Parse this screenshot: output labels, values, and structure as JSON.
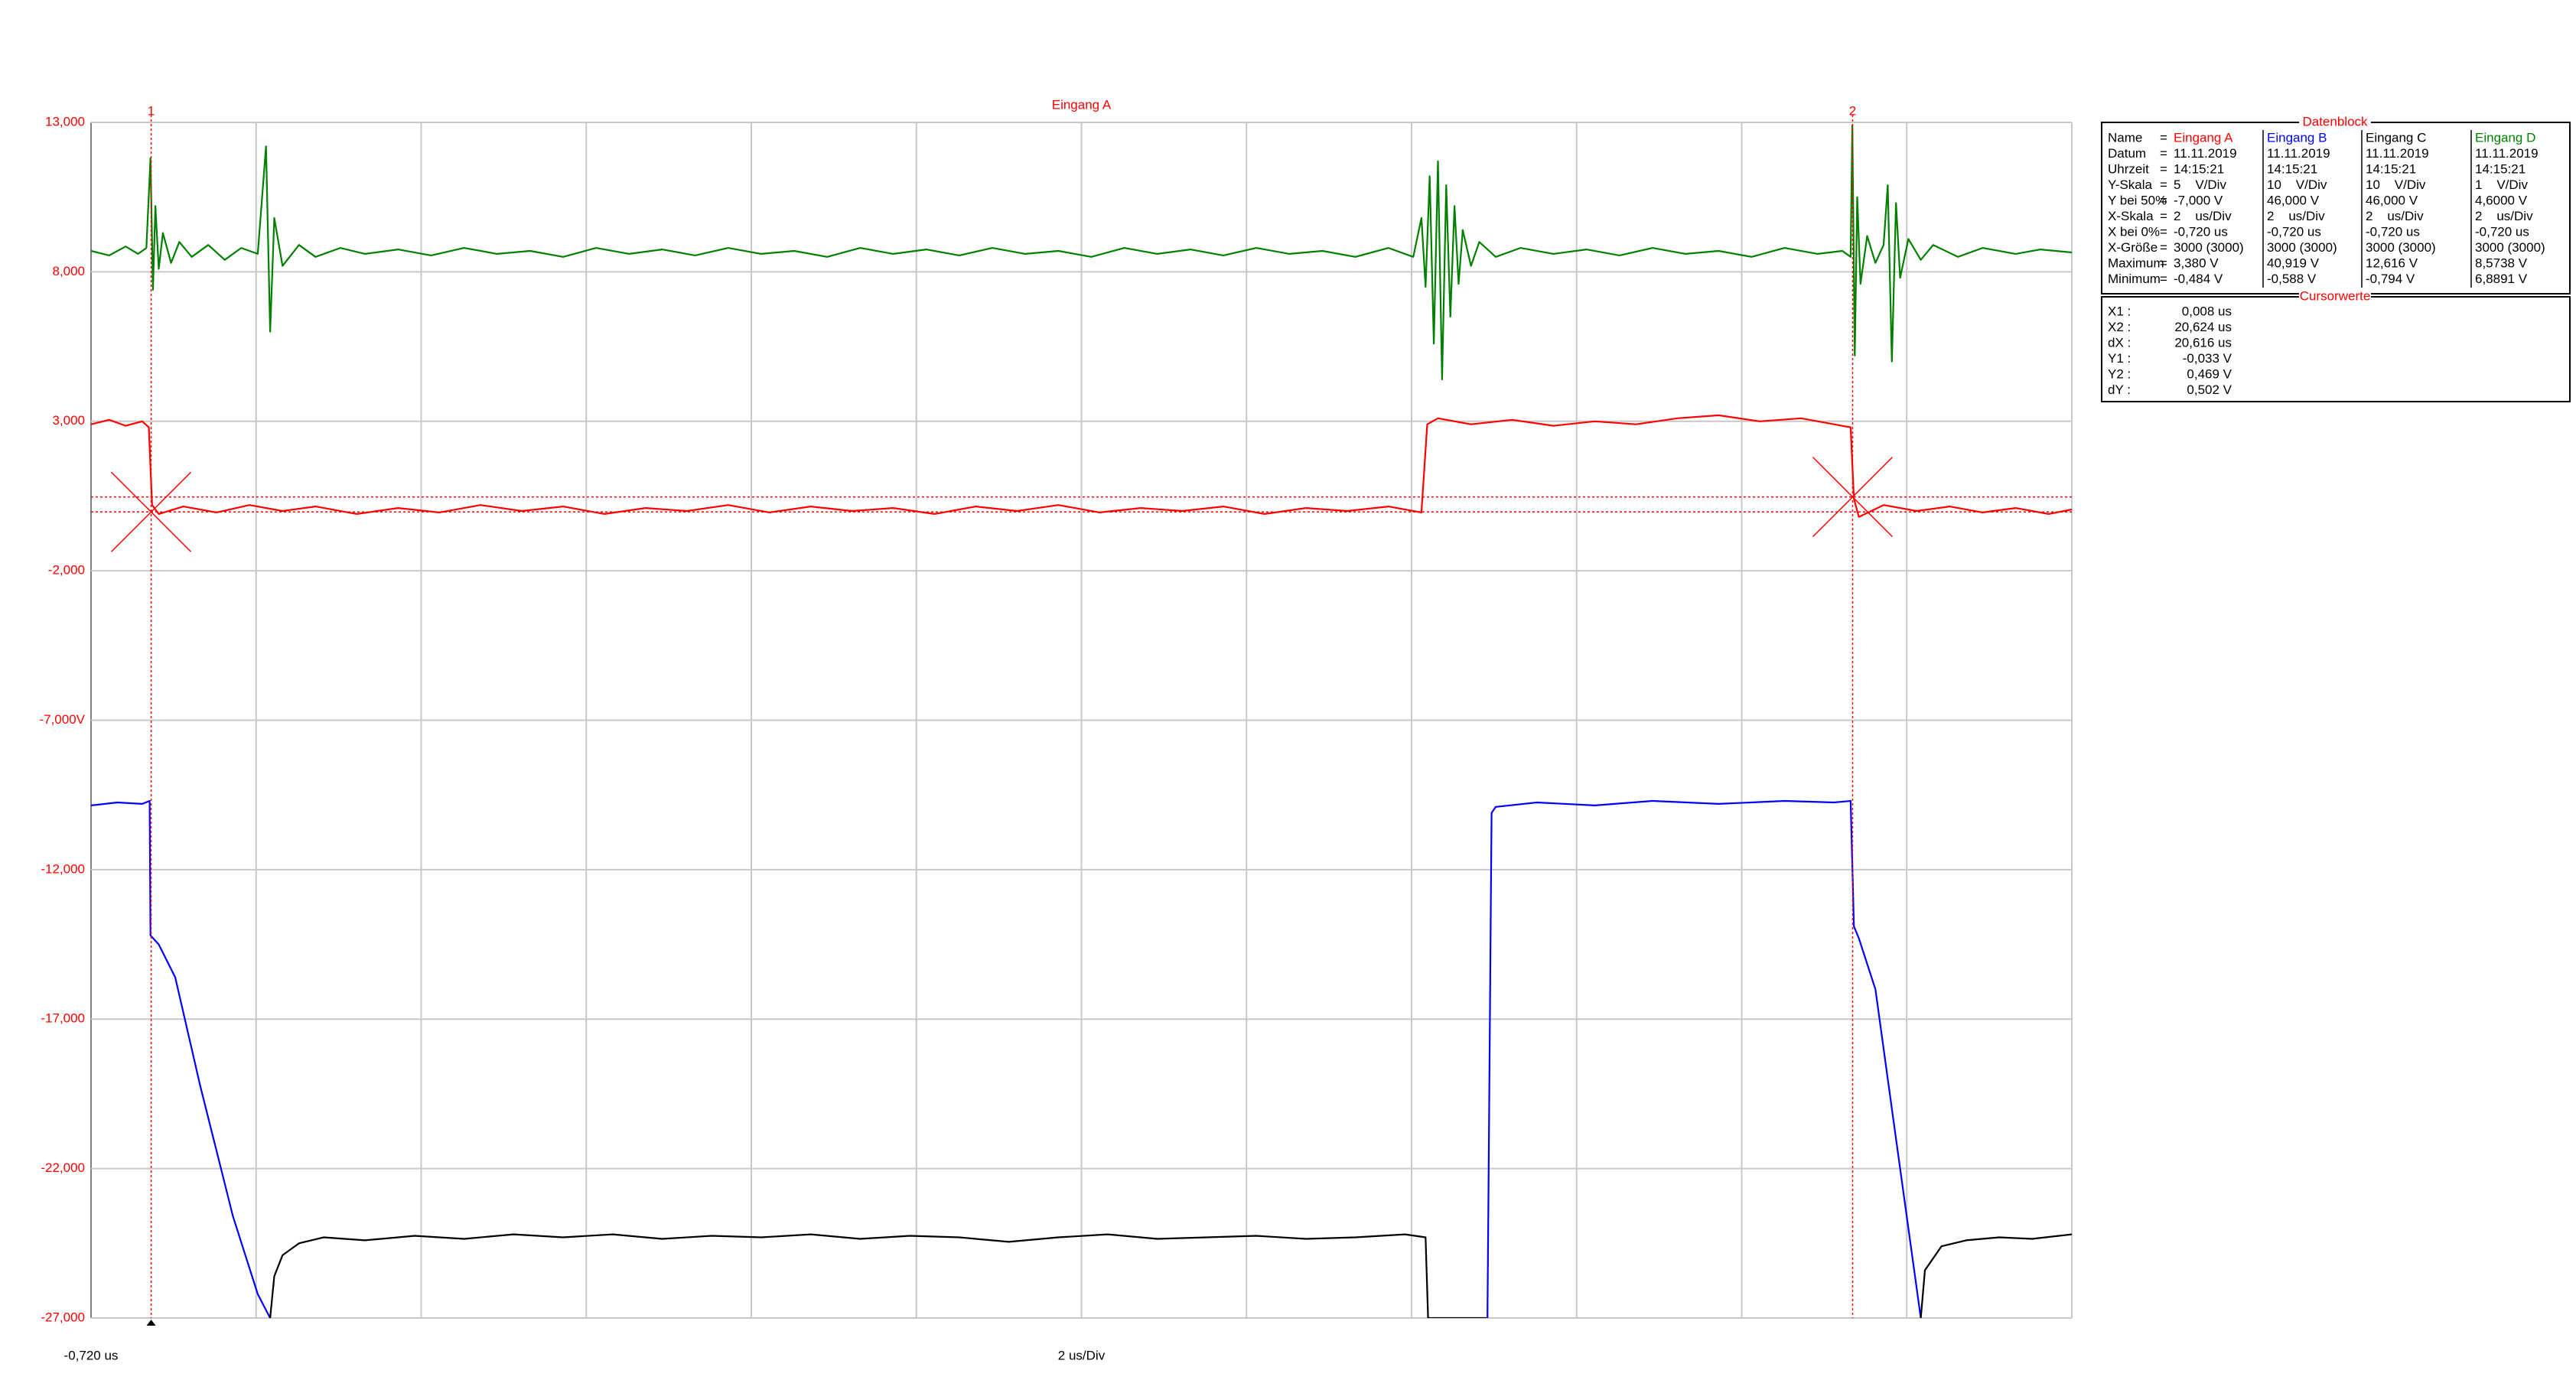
{
  "chart_data": {
    "type": "line",
    "title": "Eingang A",
    "xlim": [
      -0.72,
      23.28
    ],
    "xticks": [
      -0.72,
      1.28,
      3.28,
      5.28,
      7.28,
      9.28,
      11.28,
      13.28,
      15.28,
      17.28,
      19.28,
      21.28,
      23.28
    ],
    "x_origin_label": "-0,720 us",
    "x_scale_label": "2 us/Div",
    "ylim": [
      -27,
      13
    ],
    "yticks": [
      {
        "value": 13,
        "label": "13,000"
      },
      {
        "value": 8,
        "label": "8,000"
      },
      {
        "value": 3,
        "label": "3,000"
      },
      {
        "value": -2,
        "label": "-2,000"
      },
      {
        "value": -7,
        "label": "-7,000V"
      },
      {
        "value": -12,
        "label": "-12,000"
      },
      {
        "value": -17,
        "label": "-17,000"
      },
      {
        "value": -22,
        "label": "-22,000"
      },
      {
        "value": -27,
        "label": "-27,000"
      }
    ],
    "grid": true,
    "cursors": {
      "labels": [
        "1",
        "2"
      ],
      "x": [
        0.008,
        20.624
      ],
      "y": [
        -0.033,
        0.469
      ],
      "color": "#ff0000"
    },
    "series": [
      {
        "name": "Eingang A",
        "color": "#ff0000",
        "x": [
          -0.72,
          -0.5,
          -0.3,
          -0.1,
          -0.02,
          0.02,
          0.1,
          0.4,
          0.8,
          1.2,
          1.6,
          2.0,
          2.5,
          3.0,
          3.5,
          4.0,
          4.5,
          5.0,
          5.5,
          6.0,
          6.5,
          7.0,
          7.5,
          8.0,
          8.5,
          9.0,
          9.5,
          10.0,
          10.5,
          11.0,
          11.5,
          12.0,
          12.5,
          13.0,
          13.5,
          14.0,
          14.5,
          15.0,
          15.4,
          15.47,
          15.6,
          16.0,
          16.5,
          17.0,
          17.5,
          18.0,
          18.5,
          19.0,
          19.5,
          20.0,
          20.4,
          20.6,
          20.64,
          20.7,
          21.0,
          21.4,
          21.8,
          22.2,
          22.6,
          23.0,
          23.28
        ],
        "values": [
          2.9,
          3.05,
          2.85,
          3.0,
          2.8,
          0.2,
          -0.1,
          0.15,
          -0.05,
          0.2,
          0.0,
          0.15,
          -0.1,
          0.1,
          -0.05,
          0.2,
          0.0,
          0.15,
          -0.1,
          0.1,
          0.0,
          0.2,
          -0.05,
          0.15,
          0.0,
          0.1,
          -0.1,
          0.15,
          0.0,
          0.2,
          -0.05,
          0.1,
          0.0,
          0.15,
          -0.1,
          0.1,
          0.0,
          0.15,
          -0.05,
          2.9,
          3.1,
          2.9,
          3.05,
          2.85,
          3.0,
          2.9,
          3.1,
          3.2,
          3.0,
          3.1,
          2.9,
          2.8,
          0.4,
          -0.2,
          0.2,
          0.0,
          0.15,
          -0.05,
          0.1,
          -0.1,
          0.05
        ]
      },
      {
        "name": "Eingang B",
        "color": "#0000ff",
        "x": [
          -0.72,
          -0.4,
          -0.1,
          -0.01,
          0.0,
          0.1,
          0.3,
          0.6,
          1.0,
          1.3,
          1.45,
          8.0,
          16.2,
          16.25,
          16.3,
          16.8,
          17.5,
          18.2,
          19.0,
          19.8,
          20.4,
          20.6,
          20.64,
          20.7,
          20.9,
          21.1,
          21.3,
          21.45
        ],
        "values": [
          -9.85,
          -9.75,
          -9.8,
          -9.7,
          -14.2,
          -14.5,
          -15.6,
          -19.2,
          -23.6,
          -26.2,
          -27,
          null,
          -27,
          -10.1,
          -9.9,
          -9.75,
          -9.85,
          -9.7,
          -9.8,
          -9.7,
          -9.75,
          -9.7,
          -13.9,
          -14.3,
          -16.0,
          -20.0,
          -24.0,
          -27
        ]
      },
      {
        "name": "Eingang C",
        "color": "#000000",
        "x": [
          1.45,
          1.5,
          1.6,
          1.8,
          2.1,
          2.6,
          3.2,
          3.8,
          4.4,
          5.0,
          5.6,
          6.2,
          6.8,
          7.4,
          8.0,
          8.6,
          9.2,
          9.8,
          10.4,
          11.0,
          11.6,
          12.2,
          12.8,
          13.4,
          14.0,
          14.6,
          15.2,
          15.45,
          15.48,
          16.2,
          18.0,
          21.45,
          21.5,
          21.7,
          22.0,
          22.4,
          22.8,
          23.28
        ],
        "values": [
          -27,
          -25.6,
          -24.9,
          -24.5,
          -24.3,
          -24.4,
          -24.25,
          -24.35,
          -24.2,
          -24.3,
          -24.2,
          -24.35,
          -24.25,
          -24.3,
          -24.2,
          -24.35,
          -24.25,
          -24.3,
          -24.45,
          -24.3,
          -24.2,
          -24.35,
          -24.3,
          -24.25,
          -24.35,
          -24.3,
          -24.2,
          -24.3,
          -27,
          -27,
          null,
          -27,
          -25.4,
          -24.6,
          -24.4,
          -24.3,
          -24.35,
          -24.2
        ]
      },
      {
        "name": "Eingang D",
        "color": "#008000",
        "x": [
          -0.72,
          -0.5,
          -0.3,
          -0.15,
          -0.05,
          0.0,
          0.03,
          0.06,
          0.1,
          0.15,
          0.25,
          0.35,
          0.5,
          0.7,
          0.9,
          1.1,
          1.3,
          1.4,
          1.45,
          1.5,
          1.6,
          1.8,
          2.0,
          2.3,
          2.6,
          3.0,
          3.4,
          3.8,
          4.2,
          4.6,
          5.0,
          5.4,
          5.8,
          6.2,
          6.6,
          7.0,
          7.4,
          7.8,
          8.2,
          8.6,
          9.0,
          9.4,
          9.8,
          10.2,
          10.6,
          11.0,
          11.4,
          11.8,
          12.2,
          12.6,
          13.0,
          13.4,
          13.8,
          14.2,
          14.6,
          15.0,
          15.3,
          15.4,
          15.45,
          15.5,
          15.55,
          15.6,
          15.65,
          15.7,
          15.75,
          15.8,
          15.85,
          15.9,
          16.0,
          16.1,
          16.3,
          16.6,
          17.0,
          17.4,
          17.8,
          18.2,
          18.6,
          19.0,
          19.4,
          19.8,
          20.2,
          20.5,
          20.6,
          20.62,
          20.65,
          20.68,
          20.72,
          20.8,
          20.9,
          21.0,
          21.05,
          21.1,
          21.15,
          21.2,
          21.3,
          21.45,
          21.6,
          21.9,
          22.2,
          22.6,
          22.9,
          23.28
        ],
        "values": [
          8.7,
          8.55,
          8.85,
          8.6,
          8.8,
          11.8,
          7.4,
          10.2,
          8.1,
          9.3,
          8.3,
          9.0,
          8.5,
          8.9,
          8.4,
          8.8,
          8.6,
          12.2,
          6.0,
          9.8,
          8.2,
          8.9,
          8.5,
          8.8,
          8.6,
          8.75,
          8.55,
          8.8,
          8.6,
          8.7,
          8.5,
          8.8,
          8.6,
          8.75,
          8.55,
          8.8,
          8.6,
          8.7,
          8.5,
          8.8,
          8.6,
          8.75,
          8.55,
          8.8,
          8.6,
          8.7,
          8.5,
          8.8,
          8.6,
          8.75,
          8.55,
          8.8,
          8.6,
          8.7,
          8.5,
          8.8,
          8.5,
          9.8,
          7.5,
          11.2,
          5.6,
          11.7,
          4.4,
          10.9,
          6.5,
          10.2,
          7.6,
          9.4,
          8.2,
          9.0,
          8.5,
          8.8,
          8.6,
          8.75,
          8.55,
          8.8,
          8.6,
          8.7,
          8.5,
          8.8,
          8.6,
          8.7,
          8.5,
          12.9,
          5.2,
          10.5,
          7.6,
          9.2,
          8.3,
          8.9,
          10.9,
          5.0,
          10.3,
          7.8,
          9.1,
          8.4,
          8.9,
          8.5,
          8.8,
          8.6,
          8.75,
          8.65
        ]
      }
    ]
  },
  "datablock": {
    "title": "Datenblock",
    "sep": "=",
    "name_label": "Name",
    "rows": [
      {
        "label": "Datum",
        "cells": [
          "11.11.2019",
          "11.11.2019",
          "11.11.2019",
          "11.11.2019"
        ]
      },
      {
        "label": "Uhrzeit",
        "cells": [
          "14:15:21",
          "14:15:21",
          "14:15:21",
          "14:15:21"
        ]
      },
      {
        "label": "Y-Skala",
        "cells": [
          "5    V/Div",
          "10    V/Div",
          "10    V/Div",
          "1    V/Div"
        ]
      },
      {
        "label": "Y bei 50%",
        "cells": [
          "-7,000 V",
          "46,000 V",
          "46,000 V",
          "4,6000 V"
        ]
      },
      {
        "label": "X-Skala",
        "cells": [
          "2    us/Div",
          "2    us/Div",
          "2    us/Div",
          "2    us/Div"
        ]
      },
      {
        "label": "X bei 0%",
        "cells": [
          "-0,720 us",
          "-0,720 us",
          "-0,720 us",
          "-0,720 us"
        ]
      },
      {
        "label": "X-Größe",
        "cells": [
          "3000 (3000)",
          "3000 (3000)",
          "3000 (3000)",
          "3000 (3000)"
        ]
      },
      {
        "label": "Maximum",
        "cells": [
          "3,380 V",
          "40,919 V",
          "12,616 V",
          "8,5738 V"
        ]
      },
      {
        "label": "Minimum",
        "cells": [
          "-0,484 V",
          "-0,588 V",
          "-0,794 V",
          "6,8891 V"
        ]
      }
    ]
  },
  "cursorwerte": {
    "title": "Cursorwerte",
    "rows": [
      {
        "label": "X1 :",
        "value": "0,008 us"
      },
      {
        "label": "X2 :",
        "value": "20,624 us"
      },
      {
        "label": "dX :",
        "value": "20,616 us"
      },
      {
        "label": "Y1 :",
        "value": "-0,033 V"
      },
      {
        "label": "Y2 :",
        "value": "0,469 V"
      },
      {
        "label": "dY :",
        "value": "0,502 V"
      }
    ]
  }
}
